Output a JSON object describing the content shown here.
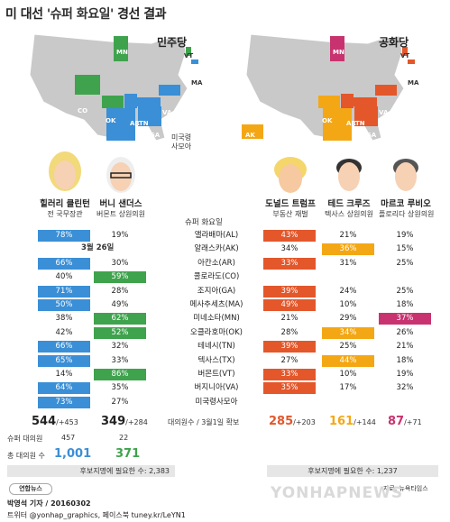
{
  "title": {
    "prefix": "미 대선 ",
    "quoted": "'슈퍼 화요일'",
    "suffix": " 경선 결과"
  },
  "parties": {
    "dem": "민주당",
    "rep": "공화당"
  },
  "map_labels": {
    "dem": [
      "MN",
      "VT",
      "MA",
      "CO",
      "OK",
      "VA",
      "AR",
      "TN",
      "GA",
      "TX",
      "AL"
    ],
    "rep": [
      "MN",
      "VT",
      "MA",
      "AK",
      "OK",
      "AR",
      "TN",
      "GA",
      "TX",
      "AL",
      "VA"
    ]
  },
  "samoa": "미국령\n사모아",
  "candidates": [
    {
      "name": "힐러리 클린턴",
      "sub": "전 국무장관"
    },
    {
      "name": "버니 샌더스",
      "sub": "버몬트 상원의원"
    },
    {
      "name": "도널드 트럼프",
      "sub": "부동산 재벌"
    },
    {
      "name": "테드 크루즈",
      "sub": "텍사스 상원의원"
    },
    {
      "name": "마르코 루비오",
      "sub": "플로리다 상원의원"
    }
  ],
  "header": "슈퍼 화요일",
  "caucus_date": "3월 26일",
  "colors": {
    "dem_win": "#3a8fd6",
    "dem_alt": "#3fa34d",
    "rep_trump": "#e3572b",
    "rep_cruz": "#f4a714",
    "rep_rubio": "#c8336f"
  },
  "rows": [
    {
      "state": "앨라배마(AL)",
      "clinton": "78%",
      "sanders": "19%",
      "trump": "43%",
      "cruz": "21%",
      "rubio": "19%",
      "dw": "c",
      "rw": "t"
    },
    {
      "state": "알래스카(AK)",
      "clinton": "",
      "sanders": "",
      "trump": "34%",
      "cruz": "36%",
      "rubio": "15%",
      "dw": "",
      "rw": "c"
    },
    {
      "state": "아칸소(AR)",
      "clinton": "66%",
      "sanders": "30%",
      "trump": "33%",
      "cruz": "31%",
      "rubio": "25%",
      "dw": "c",
      "rw": "t"
    },
    {
      "state": "콜로라도(CO)",
      "clinton": "40%",
      "sanders": "59%",
      "trump": "",
      "cruz": "",
      "rubio": "",
      "dw": "s",
      "rw": ""
    },
    {
      "state": "조지아(GA)",
      "clinton": "71%",
      "sanders": "28%",
      "trump": "39%",
      "cruz": "24%",
      "rubio": "25%",
      "dw": "c",
      "rw": "t"
    },
    {
      "state": "메사추세츠(MA)",
      "clinton": "50%",
      "sanders": "49%",
      "trump": "49%",
      "cruz": "10%",
      "rubio": "18%",
      "dw": "c",
      "rw": "t"
    },
    {
      "state": "미네소타(MN)",
      "clinton": "38%",
      "sanders": "62%",
      "trump": "21%",
      "cruz": "29%",
      "rubio": "37%",
      "dw": "s",
      "rw": "r"
    },
    {
      "state": "오클라호마(OK)",
      "clinton": "42%",
      "sanders": "52%",
      "trump": "28%",
      "cruz": "34%",
      "rubio": "26%",
      "dw": "s",
      "rw": "c"
    },
    {
      "state": "테네시(TN)",
      "clinton": "66%",
      "sanders": "32%",
      "trump": "39%",
      "cruz": "25%",
      "rubio": "21%",
      "dw": "c",
      "rw": "t"
    },
    {
      "state": "텍사스(TX)",
      "clinton": "65%",
      "sanders": "33%",
      "trump": "27%",
      "cruz": "44%",
      "rubio": "18%",
      "dw": "c",
      "rw": "c"
    },
    {
      "state": "버몬트(VT)",
      "clinton": "14%",
      "sanders": "86%",
      "trump": "33%",
      "cruz": "10%",
      "rubio": "19%",
      "dw": "s",
      "rw": "t"
    },
    {
      "state": "버지니아(VA)",
      "clinton": "64%",
      "sanders": "35%",
      "trump": "35%",
      "cruz": "17%",
      "rubio": "32%",
      "dw": "c",
      "rw": "t"
    },
    {
      "state": "미국령사모아",
      "clinton": "73%",
      "sanders": "27%",
      "trump": "",
      "cruz": "",
      "rubio": "",
      "dw": "c",
      "rw": ""
    }
  ],
  "totals": {
    "label": "대의원수 / 3월1일 확보",
    "clinton": "544",
    "clinton_plus": "/+453",
    "sanders": "349",
    "sanders_plus": "/+284",
    "trump": "285",
    "trump_plus": "/+203",
    "cruz": "161",
    "cruz_plus": "/+144",
    "rubio": "87",
    "rubio_plus": "/+71"
  },
  "super": {
    "label": "슈퍼 대의원",
    "clinton": "457",
    "sanders": "22"
  },
  "total_del": {
    "label": "총 대의원 수",
    "clinton": "1,001",
    "sanders": "371"
  },
  "needed": {
    "dem": "후보지명에 필요한 수: 2,383",
    "rep": "후보지명에 필요한 수: 1,237"
  },
  "source": "자료: 뉴욕타임스",
  "reporter": "박영석 기자 / 20160302",
  "twitter": "트위터 @yonhap_graphics, 페이스북 tuney.kr/LeYN1",
  "logo": "연합뉴스",
  "watermark": "YONHAPNEWS"
}
